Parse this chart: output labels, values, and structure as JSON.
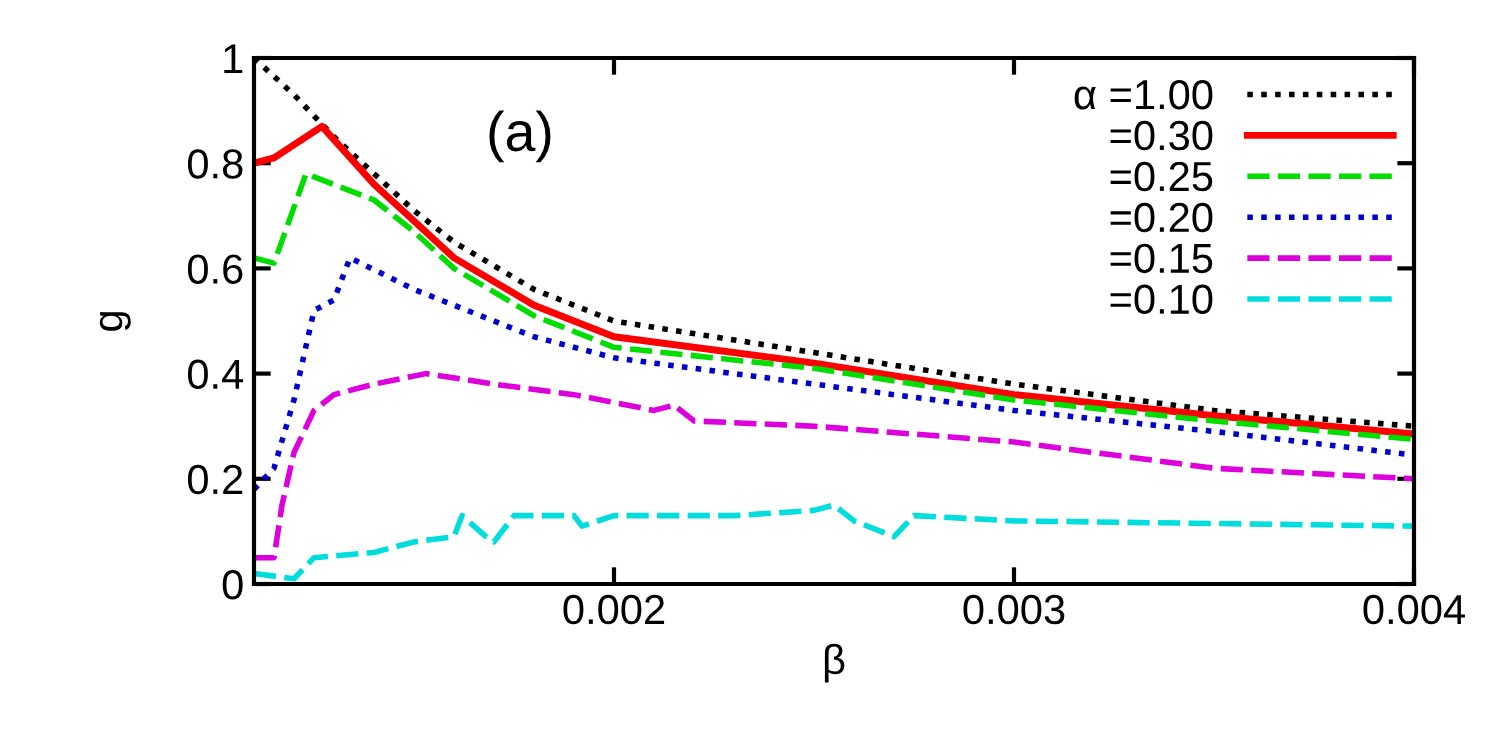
{
  "chart_data": {
    "type": "line",
    "xlabel": "β",
    "ylabel": "g",
    "annotations": [
      "(a)"
    ],
    "xlim": [
      0.0011,
      0.004
    ],
    "ylim": [
      0,
      1
    ],
    "xticks": [
      0.002,
      0.003,
      0.004
    ],
    "yticks": [
      0,
      0.2,
      0.4,
      0.6,
      0.8,
      1
    ],
    "grid": false,
    "legend": "top right",
    "marker": "none",
    "series": [
      {
        "name": "α =1.00",
        "color": "#000000",
        "line_style": "dotted",
        "x": [
          0.0011,
          0.0012,
          0.0013,
          0.0014,
          0.0015,
          0.0016,
          0.0018,
          0.002,
          0.0025,
          0.003,
          0.0035,
          0.004
        ],
        "values": [
          1.0,
          0.93,
          0.85,
          0.78,
          0.71,
          0.65,
          0.56,
          0.5,
          0.44,
          0.38,
          0.33,
          0.3
        ]
      },
      {
        "name": "=0.30",
        "color": "#ff0000",
        "line_style": "solid",
        "x": [
          0.0011,
          0.00115,
          0.00127,
          0.0014,
          0.0015,
          0.0016,
          0.0018,
          0.002,
          0.0025,
          0.003,
          0.0035,
          0.004
        ],
        "values": [
          0.8,
          0.81,
          0.87,
          0.76,
          0.69,
          0.62,
          0.53,
          0.47,
          0.42,
          0.36,
          0.32,
          0.285
        ]
      },
      {
        "name": "=0.25",
        "color": "#00dd00",
        "line_style": "dashed",
        "x": [
          0.0011,
          0.00115,
          0.00123,
          0.0014,
          0.0015,
          0.0016,
          0.0018,
          0.002,
          0.0025,
          0.003,
          0.0035,
          0.004
        ],
        "values": [
          0.62,
          0.61,
          0.78,
          0.73,
          0.67,
          0.6,
          0.51,
          0.45,
          0.41,
          0.35,
          0.31,
          0.275
        ]
      },
      {
        "name": "=0.20",
        "color": "#0000cc",
        "line_style": "dotted",
        "x": [
          0.0011,
          0.00115,
          0.0012,
          0.00125,
          0.0013,
          0.00134,
          0.0015,
          0.0018,
          0.002,
          0.0025,
          0.003,
          0.0035,
          0.004
        ],
        "values": [
          0.18,
          0.22,
          0.35,
          0.52,
          0.54,
          0.62,
          0.56,
          0.47,
          0.43,
          0.38,
          0.33,
          0.29,
          0.245
        ]
      },
      {
        "name": "=0.15",
        "color": "#dd00dd",
        "line_style": "dashed",
        "x": [
          0.0011,
          0.00115,
          0.00117,
          0.0012,
          0.00125,
          0.0013,
          0.0014,
          0.00153,
          0.0017,
          0.0019,
          0.0021,
          0.00215,
          0.0022,
          0.0025,
          0.003,
          0.0035,
          0.004
        ],
        "values": [
          0.05,
          0.05,
          0.15,
          0.25,
          0.33,
          0.36,
          0.38,
          0.4,
          0.38,
          0.36,
          0.33,
          0.34,
          0.31,
          0.3,
          0.27,
          0.22,
          0.2
        ]
      },
      {
        "name": "=0.10",
        "color": "#00dddd",
        "line_style": "dashed",
        "x": [
          0.0011,
          0.0012,
          0.00125,
          0.0014,
          0.0015,
          0.0016,
          0.00162,
          0.00168,
          0.0017,
          0.00175,
          0.0019,
          0.00192,
          0.002,
          0.0023,
          0.0025,
          0.00255,
          0.0026,
          0.0027,
          0.00275,
          0.003,
          0.004
        ],
        "values": [
          0.02,
          0.01,
          0.05,
          0.06,
          0.08,
          0.09,
          0.13,
          0.09,
          0.08,
          0.13,
          0.13,
          0.11,
          0.13,
          0.13,
          0.14,
          0.15,
          0.12,
          0.09,
          0.13,
          0.12,
          0.11
        ]
      }
    ]
  }
}
